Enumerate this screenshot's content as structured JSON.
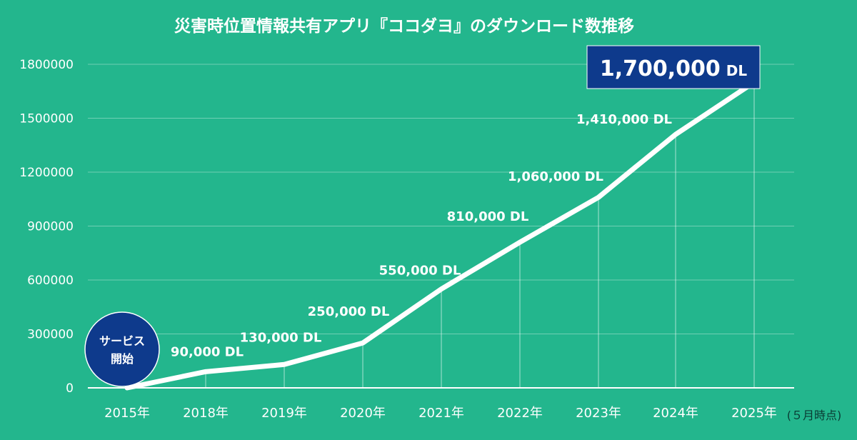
{
  "chart_data": {
    "type": "line",
    "title": "災害時位置情報共有アプリ『ココダヨ』のダウンロード数推移",
    "categories": [
      "2015年",
      "2018年",
      "2019年",
      "2020年",
      "2021年",
      "2022年",
      "2023年",
      "2024年",
      "2025年"
    ],
    "series": [
      {
        "values": [
          0,
          90000,
          130000,
          250000,
          550000,
          810000,
          1060000,
          1410000,
          1700000
        ],
        "labels": [
          "",
          "90,000 DL",
          "130,000 DL",
          "250,000 DL",
          "550,000 DL",
          "810,000 DL",
          "1,060,000 DL",
          "1,410,000 DL",
          "1,700,000"
        ]
      }
    ],
    "yticks": [
      "0",
      "300000",
      "600000",
      "900000",
      "1200000",
      "1500000",
      "1800000"
    ],
    "ylim": [
      0,
      1800000
    ],
    "grid": true,
    "highlight": {
      "value": "1,700,000",
      "unit": "DL",
      "color": "#0e3a8c"
    },
    "start_badge": {
      "line1": "サービス",
      "line2": "開始",
      "color": "#0e3a8c"
    },
    "note": "(５月時点)",
    "colors": {
      "background": "#23b68d",
      "line": "#ffffff",
      "badge": "#0e3a8c"
    }
  }
}
